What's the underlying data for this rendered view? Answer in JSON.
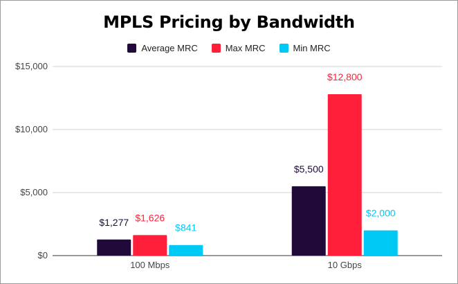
{
  "chart_data": {
    "type": "bar",
    "title": "MPLS Pricing by Bandwidth",
    "xlabel": "",
    "ylabel": "",
    "categories": [
      "100 Mbps",
      "10 Gbps"
    ],
    "series": [
      {
        "name": "Average MRC",
        "color": "#1f0a3a",
        "values": [
          1277,
          5500
        ],
        "labels": [
          "$1,277",
          "$5,500"
        ]
      },
      {
        "name": "Max MRC",
        "color": "#ff1f3a",
        "values": [
          1626,
          12800
        ],
        "labels": [
          "$1,626",
          "$12,800"
        ]
      },
      {
        "name": "Min MRC",
        "color": "#00c8f5",
        "values": [
          841,
          2000
        ],
        "labels": [
          "$841",
          "$2,000"
        ]
      }
    ],
    "ylim": [
      0,
      15000
    ],
    "yticks": [
      0,
      5000,
      10000,
      15000
    ],
    "ytick_labels": [
      "$0",
      "$5,000",
      "$10,000",
      "$15,000"
    ],
    "grid": true,
    "legend_position": "top-center"
  }
}
